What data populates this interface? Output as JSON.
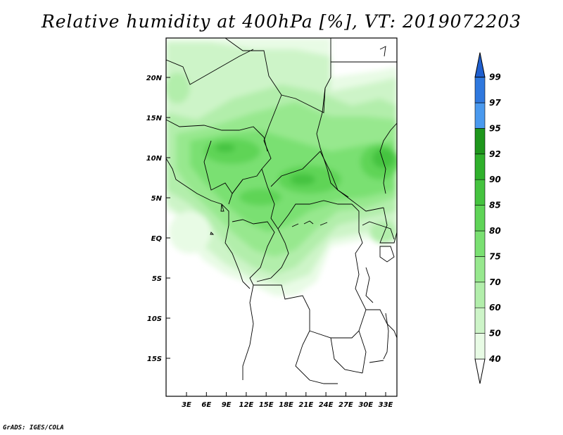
{
  "title": "Relative humidity at 400hPa [%], VT: 2019072203",
  "footer": "GrADS: IGES/COLA",
  "lat_ticks": [
    "20N",
    "15N",
    "10N",
    "5N",
    "EQ",
    "5S",
    "10S",
    "15S"
  ],
  "lon_ticks": [
    "3E",
    "6E",
    "9E",
    "12E",
    "15E",
    "18E",
    "21E",
    "24E",
    "27E",
    "30E",
    "33E"
  ],
  "colorbar": {
    "levels": [
      "40",
      "50",
      "60",
      "70",
      "75",
      "80",
      "85",
      "90",
      "92",
      "95",
      "97",
      "99"
    ],
    "colors": [
      "#ffffff",
      "#e8fbe5",
      "#cdf4c8",
      "#b2eeab",
      "#97e88e",
      "#7ae072",
      "#5fd457",
      "#45c33f",
      "#2fb02b",
      "#1e961c",
      "#4a99ee",
      "#2f78de",
      "#1f5fcf"
    ]
  },
  "colors": {
    "border": "#000000",
    "frame": "#000000"
  }
}
